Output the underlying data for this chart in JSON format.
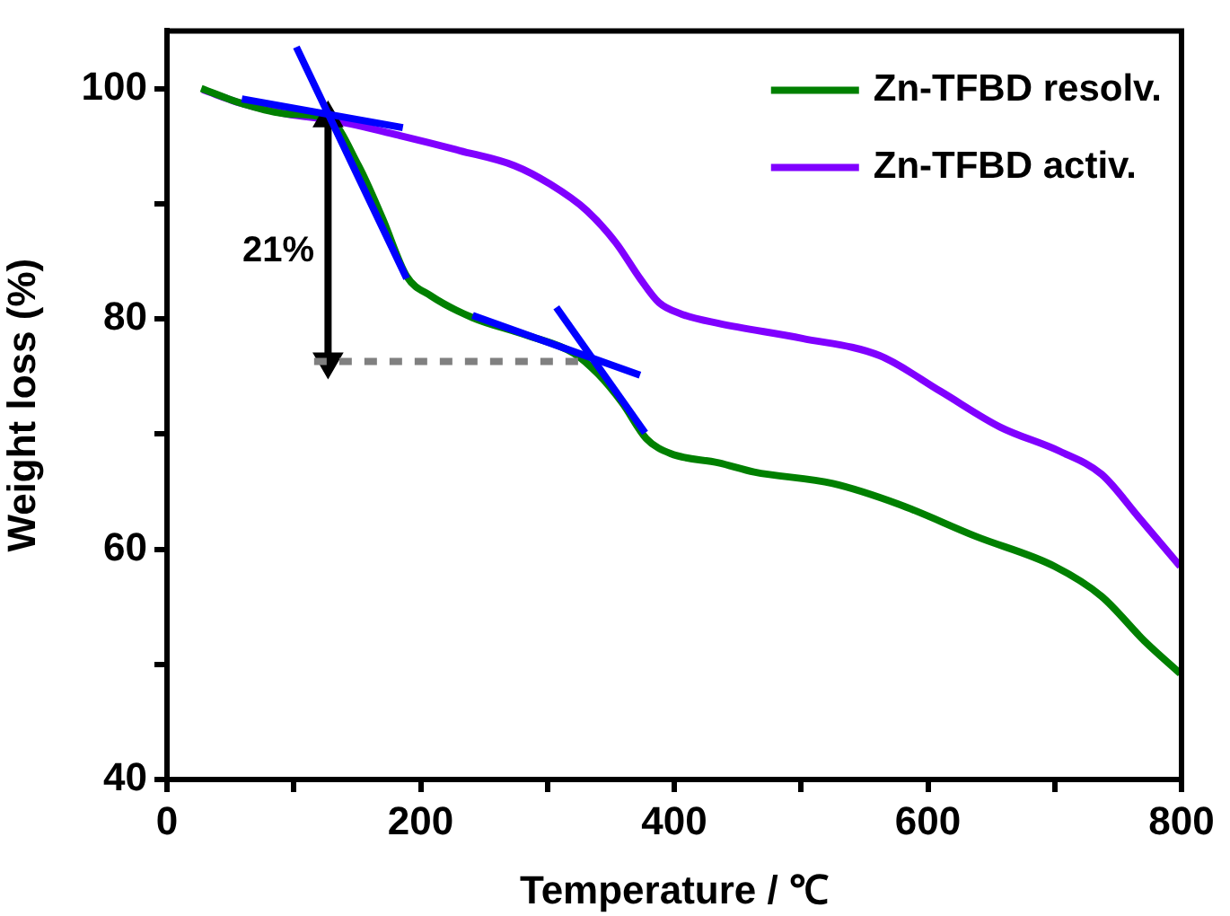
{
  "chart_data": {
    "type": "line",
    "xlabel": "Temperature / ℃",
    "ylabel": "Weight loss (%)",
    "xlim": [
      0,
      800
    ],
    "xticks": [
      0,
      {
        "value": 100,
        "label": null
      },
      200,
      {
        "value": 300,
        "label": null
      },
      400,
      {
        "value": 500,
        "label": null
      },
      600,
      {
        "value": 700,
        "label": null
      },
      800
    ],
    "ylim": [
      40,
      105
    ],
    "yticks": [
      40,
      {
        "value": 50,
        "label": null
      },
      60,
      {
        "value": 70,
        "label": null
      },
      80,
      {
        "value": 90,
        "label": null
      },
      100
    ],
    "grid": false,
    "legend": "top right",
    "marker": "none",
    "annotations": [
      "21%"
    ],
    "series": [
      {
        "name": "Zn-TFBD resolv.",
        "color": "#008000",
        "x": [
          27,
          59,
          94,
          127,
          151,
          170,
          189,
          208,
          241,
          283,
          321,
          340,
          359,
          378,
          397,
          435,
          463,
          525,
          577,
          638,
          700,
          737,
          771,
          799
        ],
        "values": [
          100,
          98.7,
          97.8,
          97.4,
          93.3,
          88.7,
          83.7,
          82.0,
          80.1,
          78.6,
          77.0,
          75.2,
          72.7,
          69.6,
          68.3,
          67.5,
          66.7,
          65.7,
          63.9,
          61.1,
          58.5,
          55.9,
          52.0,
          49.2
        ]
      },
      {
        "name": "Zn-TFBD activ.",
        "color": "#8000ff",
        "x": [
          28,
          59,
          94,
          132,
          184,
          231,
          274,
          302,
          331,
          354,
          373,
          388,
          406,
          435,
          501,
          562,
          610,
          657,
          704,
          737,
          766,
          799
        ],
        "values": [
          99.9,
          98.7,
          97.8,
          97.2,
          95.9,
          94.6,
          93.3,
          91.7,
          89.4,
          86.6,
          83.5,
          81.4,
          80.4,
          79.6,
          78.3,
          76.8,
          73.7,
          70.6,
          68.5,
          66.5,
          62.8,
          58.5
        ]
      },
      {
        "color": "#0000ff",
        "x": [
          59,
          186
        ],
        "values": [
          99.1,
          96.6
        ]
      },
      {
        "color": "#0000ff",
        "x": [
          102,
          189
        ],
        "values": [
          103.6,
          83.5
        ]
      },
      {
        "color": "#0000ff",
        "x": [
          241,
          373
        ],
        "values": [
          80.3,
          75.1
        ]
      },
      {
        "color": "#0000ff",
        "x": [
          307,
          377
        ],
        "values": [
          81.0,
          70.1
        ]
      },
      {
        "color": "#808080",
        "line_style": "dashed",
        "x": [
          116,
          333
        ],
        "values": [
          76.3,
          76.3
        ]
      },
      {
        "color": "#000000",
        "marker": "triangle",
        "x": [
          127,
          127
        ],
        "values": [
          97.4,
          76.3
        ]
      }
    ]
  }
}
